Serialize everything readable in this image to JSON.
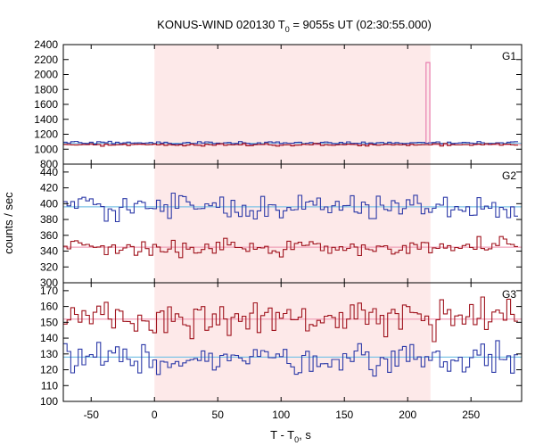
{
  "chart_data": {
    "type": "line",
    "title": "KONUS-WIND 020130 T",
    "title_sub": "0",
    "title_rest": " = 9055s UT (02:30:55.000)",
    "xlabel": "T - T",
    "xlabel_sub": "0",
    "xlabel_rest": ", s",
    "ylabel": "counts / sec",
    "xlim": [
      -72,
      290
    ],
    "xticks": [
      -50,
      0,
      50,
      100,
      150,
      200,
      250
    ],
    "highlight_interval": [
      0,
      218
    ],
    "highlight_color": "#fde9e9",
    "grid": false,
    "panels": [
      {
        "label": "G1",
        "ylim": [
          800,
          2400
        ],
        "yticks": [
          800,
          1000,
          1200,
          1400,
          1600,
          1800,
          2000,
          2200,
          2400
        ],
        "spike": {
          "x0": 214.5,
          "x1": 217.5,
          "value": 2160,
          "color": "#e87fb0"
        },
        "series": [
          {
            "color": "#2d3aa8",
            "background_level": 1080,
            "level": 1085,
            "amplitude": 14,
            "baseline_color": "#7fc4e6"
          },
          {
            "color": "#a0141e",
            "background_level": 1060,
            "level": 1060,
            "amplitude": 12,
            "baseline_color": "#f0a0b8"
          }
        ]
      },
      {
        "label": "G2",
        "ylim": [
          300,
          450
        ],
        "yticks": [
          300,
          320,
          340,
          360,
          380,
          400,
          420,
          440
        ],
        "series": [
          {
            "color": "#2d3aa8",
            "background_level": 396,
            "level": 396,
            "amplitude": 11,
            "baseline_color": "#7fc4e6"
          },
          {
            "color": "#a0141e",
            "background_level": 345,
            "level": 345,
            "amplitude": 8,
            "baseline_color": "#f0a0b8"
          }
        ]
      },
      {
        "label": "G3",
        "ylim": [
          100,
          175
        ],
        "yticks": [
          100,
          110,
          120,
          130,
          140,
          150,
          160,
          170
        ],
        "series": [
          {
            "color": "#a0141e",
            "background_level": 152,
            "level": 152,
            "amplitude": 9,
            "baseline_color": "#f0a0b8"
          },
          {
            "color": "#2d3aa8",
            "background_level": 128,
            "level": 127,
            "amplitude": 7,
            "baseline_color": "#7fc4e6"
          }
        ]
      }
    ],
    "bin_width_s": 2.944
  }
}
